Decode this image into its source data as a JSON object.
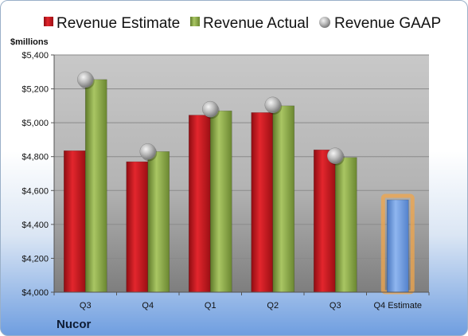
{
  "chart_data": {
    "type": "bar",
    "ylabel": "$millions",
    "ylim": [
      4000,
      5400
    ],
    "y_ticks": [
      4000,
      4200,
      4400,
      4600,
      4800,
      5000,
      5200,
      5400
    ],
    "y_tick_labels": [
      "$4,000",
      "$4,200",
      "$4,400",
      "$4,600",
      "$4,800",
      "$5,000",
      "$5,200",
      "$5,400"
    ],
    "categories": [
      "Q3",
      "Q4",
      "Q1",
      "Q2",
      "Q3",
      "Q4 Estimate"
    ],
    "grid": true,
    "legend_position": "top",
    "series": [
      {
        "name": "Revenue Estimate",
        "kind": "bar",
        "color": "#c0141b",
        "values": [
          4835,
          4770,
          5045,
          5060,
          4840,
          null
        ]
      },
      {
        "name": "Revenue Actual",
        "kind": "bar",
        "color": "#8fae4a",
        "values": [
          5255,
          4830,
          5070,
          5100,
          4795,
          null
        ]
      },
      {
        "name": "Revenue GAAP",
        "kind": "marker",
        "color": "#a8a8a8",
        "values": [
          5255,
          4830,
          5080,
          5105,
          4805,
          null
        ]
      },
      {
        "name": "",
        "kind": "bar",
        "color": "#6f9be0",
        "highlight": "#f2a64a",
        "values": [
          null,
          null,
          null,
          null,
          null,
          4545
        ]
      }
    ],
    "company": "Nucor"
  }
}
